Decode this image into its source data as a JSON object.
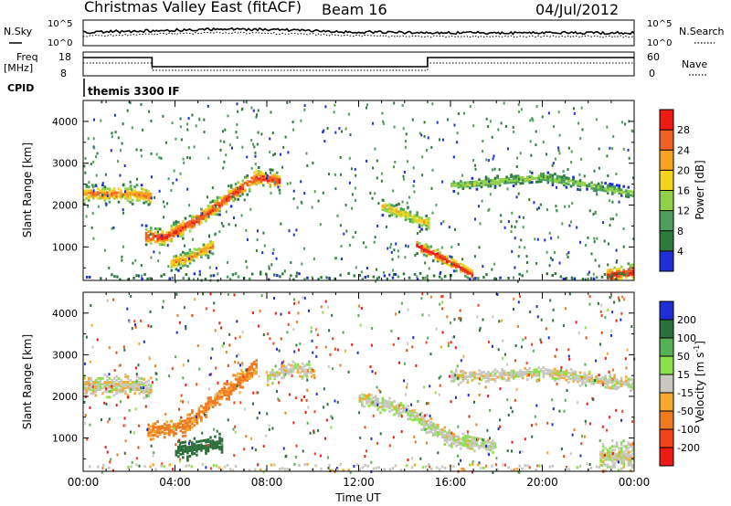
{
  "header": {
    "title": "Christmas Valley East (fitACF)",
    "beam": "Beam 16",
    "date": "04/Jul/2012"
  },
  "status_panels": {
    "nsky_label": "N.Sky",
    "nsearch_label": "N.Search",
    "noise_ticks": [
      "10^5",
      "10^0"
    ],
    "freq_label": "Freq",
    "freq_unit": "[MHz]",
    "freq_ticks": [
      "18",
      "8"
    ],
    "nave_label": "Nave",
    "nave_ticks": [
      "60",
      "0"
    ],
    "cpid_label": "CPID",
    "cpid_text": "themis 3300 IF"
  },
  "colors": {
    "power": [
      "#1f2fd8",
      "#2d7a3c",
      "#4d9e5d",
      "#8fd148",
      "#f2d41e",
      "#f5a320",
      "#f06020",
      "#ee1a14"
    ],
    "velocity": [
      "#1f2fd8",
      "#2d6f3a",
      "#55b055",
      "#8ee04a",
      "#c8c8c0",
      "#f6a830",
      "#f07a20",
      "#f04418",
      "#ee1a14"
    ]
  },
  "chart_data": [
    {
      "type": "heatmap",
      "name": "power",
      "xlabel": "",
      "ylabel": "Slant Range [km]",
      "x_ticks": [
        "00:00",
        "04:00",
        "08:00",
        "12:00",
        "16:00",
        "20:00",
        "00:00"
      ],
      "y_ticks": [
        1000,
        2000,
        3000,
        4000
      ],
      "ylim": [
        200,
        4500
      ],
      "xlim_hours": [
        0,
        24
      ],
      "colorbar": {
        "label": "Power [dB]",
        "ticks": [
          "4",
          "8",
          "12",
          "16",
          "20",
          "24",
          "28"
        ],
        "range": [
          0,
          32
        ]
      },
      "echo_bands": [
        {
          "t": [
            0.0,
            2.5,
            3.0
          ],
          "r": [
            2300,
            2300,
            2200
          ],
          "w": 150,
          "v": 24
        },
        {
          "t": [
            2.7,
            3.5,
            5.0,
            6.5,
            7.5,
            8.5
          ],
          "r": [
            1300,
            1250,
            1700,
            2300,
            2700,
            2600
          ],
          "w": 160,
          "v": 28
        },
        {
          "t": [
            3.8,
            4.5,
            5.0,
            5.6
          ],
          "r": [
            650,
            750,
            900,
            1050
          ],
          "w": 140,
          "v": 22
        },
        {
          "t": [
            13.0,
            14.0,
            15.0
          ],
          "r": [
            2000,
            1800,
            1600
          ],
          "w": 130,
          "v": 18
        },
        {
          "t": [
            14.5,
            15.5,
            16.5,
            17.0
          ],
          "r": [
            1050,
            800,
            500,
            330
          ],
          "w": 110,
          "v": 30
        },
        {
          "t": [
            16.0,
            18.0,
            20.0,
            22.0,
            24.0
          ],
          "r": [
            2500,
            2600,
            2700,
            2500,
            2300
          ],
          "w": 90,
          "v": 14
        },
        {
          "t": [
            22.8,
            23.5,
            24.0
          ],
          "r": [
            350,
            400,
            450
          ],
          "w": 150,
          "v": 30
        }
      ]
    },
    {
      "type": "heatmap",
      "name": "velocity",
      "xlabel": "Time UT",
      "ylabel": "Slant Range [km]",
      "x_ticks": [
        "00:00",
        "04:00",
        "08:00",
        "12:00",
        "16:00",
        "20:00",
        "00:00"
      ],
      "y_ticks": [
        1000,
        2000,
        3000,
        4000
      ],
      "ylim": [
        200,
        4500
      ],
      "xlim_hours": [
        0,
        24
      ],
      "colorbar": {
        "label": "Velocity [m s^-1]",
        "ticks": [
          "200",
          "100",
          "50",
          "15",
          "-15",
          "-50",
          "-100",
          "-200"
        ],
        "range": [
          -250,
          250
        ]
      },
      "echo_bands": [
        {
          "t": [
            0.0,
            2.5,
            3.0
          ],
          "r": [
            2300,
            2300,
            2200
          ],
          "w": 180,
          "v": 0
        },
        {
          "t": [
            2.8,
            4.5,
            6.0,
            7.5
          ],
          "r": [
            1200,
            1350,
            2100,
            2700
          ],
          "w": 160,
          "v": -40
        },
        {
          "t": [
            4.0,
            5.0,
            6.0
          ],
          "r": [
            700,
            800,
            900
          ],
          "w": 160,
          "v": 120
        },
        {
          "t": [
            8.0,
            9.0,
            10.0
          ],
          "r": [
            2500,
            2700,
            2600
          ],
          "w": 120,
          "v": 0
        },
        {
          "t": [
            12.0,
            14.0,
            16.0,
            18.0
          ],
          "r": [
            2000,
            1700,
            1000,
            800
          ],
          "w": 140,
          "v": 5
        },
        {
          "t": [
            16.0,
            20.0,
            24.0
          ],
          "r": [
            2500,
            2600,
            2300
          ],
          "w": 120,
          "v": 0
        },
        {
          "t": [
            22.5,
            24.0
          ],
          "r": [
            600,
            600
          ],
          "w": 250,
          "v": 0
        }
      ]
    }
  ]
}
